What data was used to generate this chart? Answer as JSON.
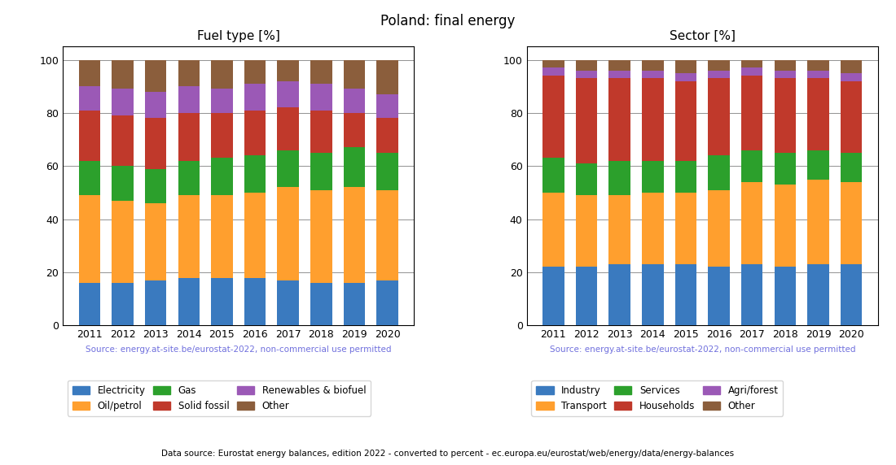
{
  "title": "Poland: final energy",
  "footer": "Data source: Eurostat energy balances, edition 2022 - converted to percent - ec.europa.eu/eurostat/web/energy/data/energy-balances",
  "source_text": "Source: energy.at-site.be/eurostat-2022, non-commercial use permitted",
  "years": [
    2011,
    2012,
    2013,
    2014,
    2015,
    2016,
    2017,
    2018,
    2019,
    2020
  ],
  "fuel_title": "Fuel type [%]",
  "fuel_labels": [
    "Electricity",
    "Oil/petrol",
    "Gas",
    "Solid fossil",
    "Renewables & biofuel",
    "Other"
  ],
  "fuel_colors": [
    "#3a7abf",
    "#ff9f2e",
    "#2ca02c",
    "#c0392b",
    "#9b59b6",
    "#8B5E3C"
  ],
  "fuel_data": {
    "Electricity": [
      16,
      16,
      17,
      18,
      18,
      18,
      17,
      16,
      16,
      17
    ],
    "Oil/petrol": [
      33,
      31,
      29,
      31,
      31,
      32,
      35,
      35,
      36,
      34
    ],
    "Gas": [
      13,
      13,
      13,
      13,
      14,
      14,
      14,
      14,
      15,
      14
    ],
    "Solid fossil": [
      19,
      19,
      19,
      18,
      17,
      17,
      16,
      16,
      13,
      13
    ],
    "Renewables & biofuel": [
      9,
      10,
      10,
      10,
      9,
      10,
      10,
      10,
      9,
      9
    ],
    "Other": [
      10,
      11,
      12,
      10,
      11,
      9,
      8,
      9,
      11,
      13
    ]
  },
  "sector_title": "Sector [%]",
  "sector_labels": [
    "Industry",
    "Transport",
    "Services",
    "Households",
    "Agri/forest",
    "Other"
  ],
  "sector_colors": [
    "#3a7abf",
    "#ff9f2e",
    "#2ca02c",
    "#c0392b",
    "#9b59b6",
    "#8B5E3C"
  ],
  "sector_data": {
    "Industry": [
      22,
      22,
      23,
      23,
      23,
      22,
      23,
      22,
      23,
      23
    ],
    "Transport": [
      28,
      27,
      26,
      27,
      27,
      29,
      31,
      31,
      32,
      31
    ],
    "Services": [
      13,
      12,
      13,
      12,
      12,
      13,
      12,
      12,
      11,
      11
    ],
    "Households": [
      31,
      32,
      31,
      31,
      30,
      29,
      28,
      28,
      27,
      27
    ],
    "Agri/forest": [
      3,
      3,
      3,
      3,
      3,
      3,
      3,
      3,
      3,
      3
    ],
    "Other": [
      3,
      4,
      4,
      4,
      5,
      4,
      3,
      4,
      4,
      5
    ]
  }
}
